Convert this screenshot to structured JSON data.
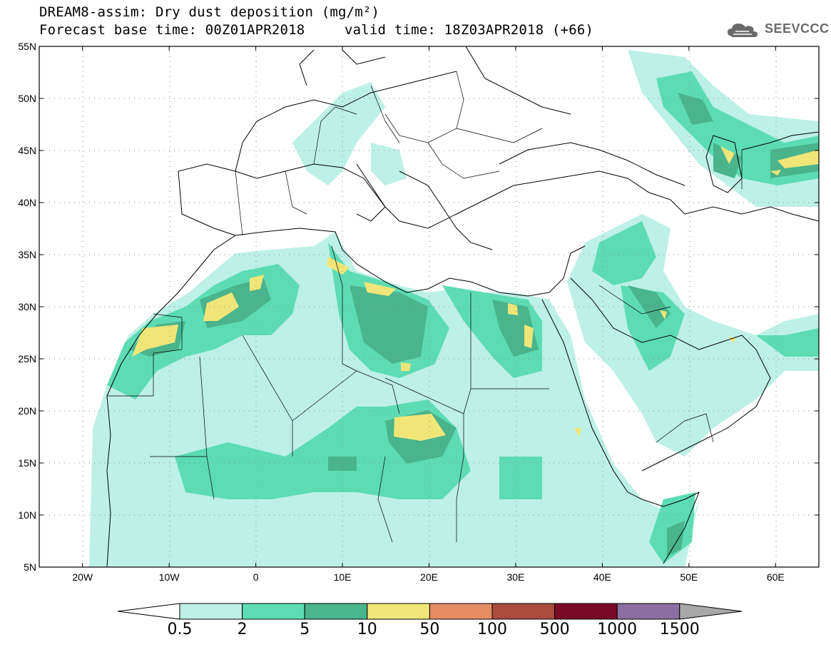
{
  "title": {
    "line1": "DREAM8-assim: Dry dust deposition (mg/m²)",
    "line2": "Forecast base time: 00Z01APR2018",
    "line3": "valid time: 18Z03APR2018 (+66)"
  },
  "logo": {
    "text": "SEEVCCC",
    "icon": "cloud-icon"
  },
  "map": {
    "lon_range": [
      -25,
      65
    ],
    "lat_range": [
      5,
      55
    ],
    "lon_ticks": [
      "20W",
      "10W",
      "0",
      "10E",
      "20E",
      "30E",
      "40E",
      "50E",
      "60E"
    ],
    "lat_ticks": [
      "5N",
      "10N",
      "15N",
      "20N",
      "25N",
      "30N",
      "35N",
      "40N",
      "45N",
      "50N",
      "55N"
    ],
    "grid": "dotted"
  },
  "colorbar": {
    "labels": [
      "0.5",
      "2",
      "5",
      "10",
      "50",
      "100",
      "500",
      "1000",
      "1500"
    ],
    "colors": [
      "#bdf0e6",
      "#5ddcb4",
      "#4ab48c",
      "#f0e678",
      "#e68c64",
      "#aa4b3c",
      "#780a28",
      "#8c6ea0",
      "#a8a8a8"
    ],
    "extend": "both"
  }
}
